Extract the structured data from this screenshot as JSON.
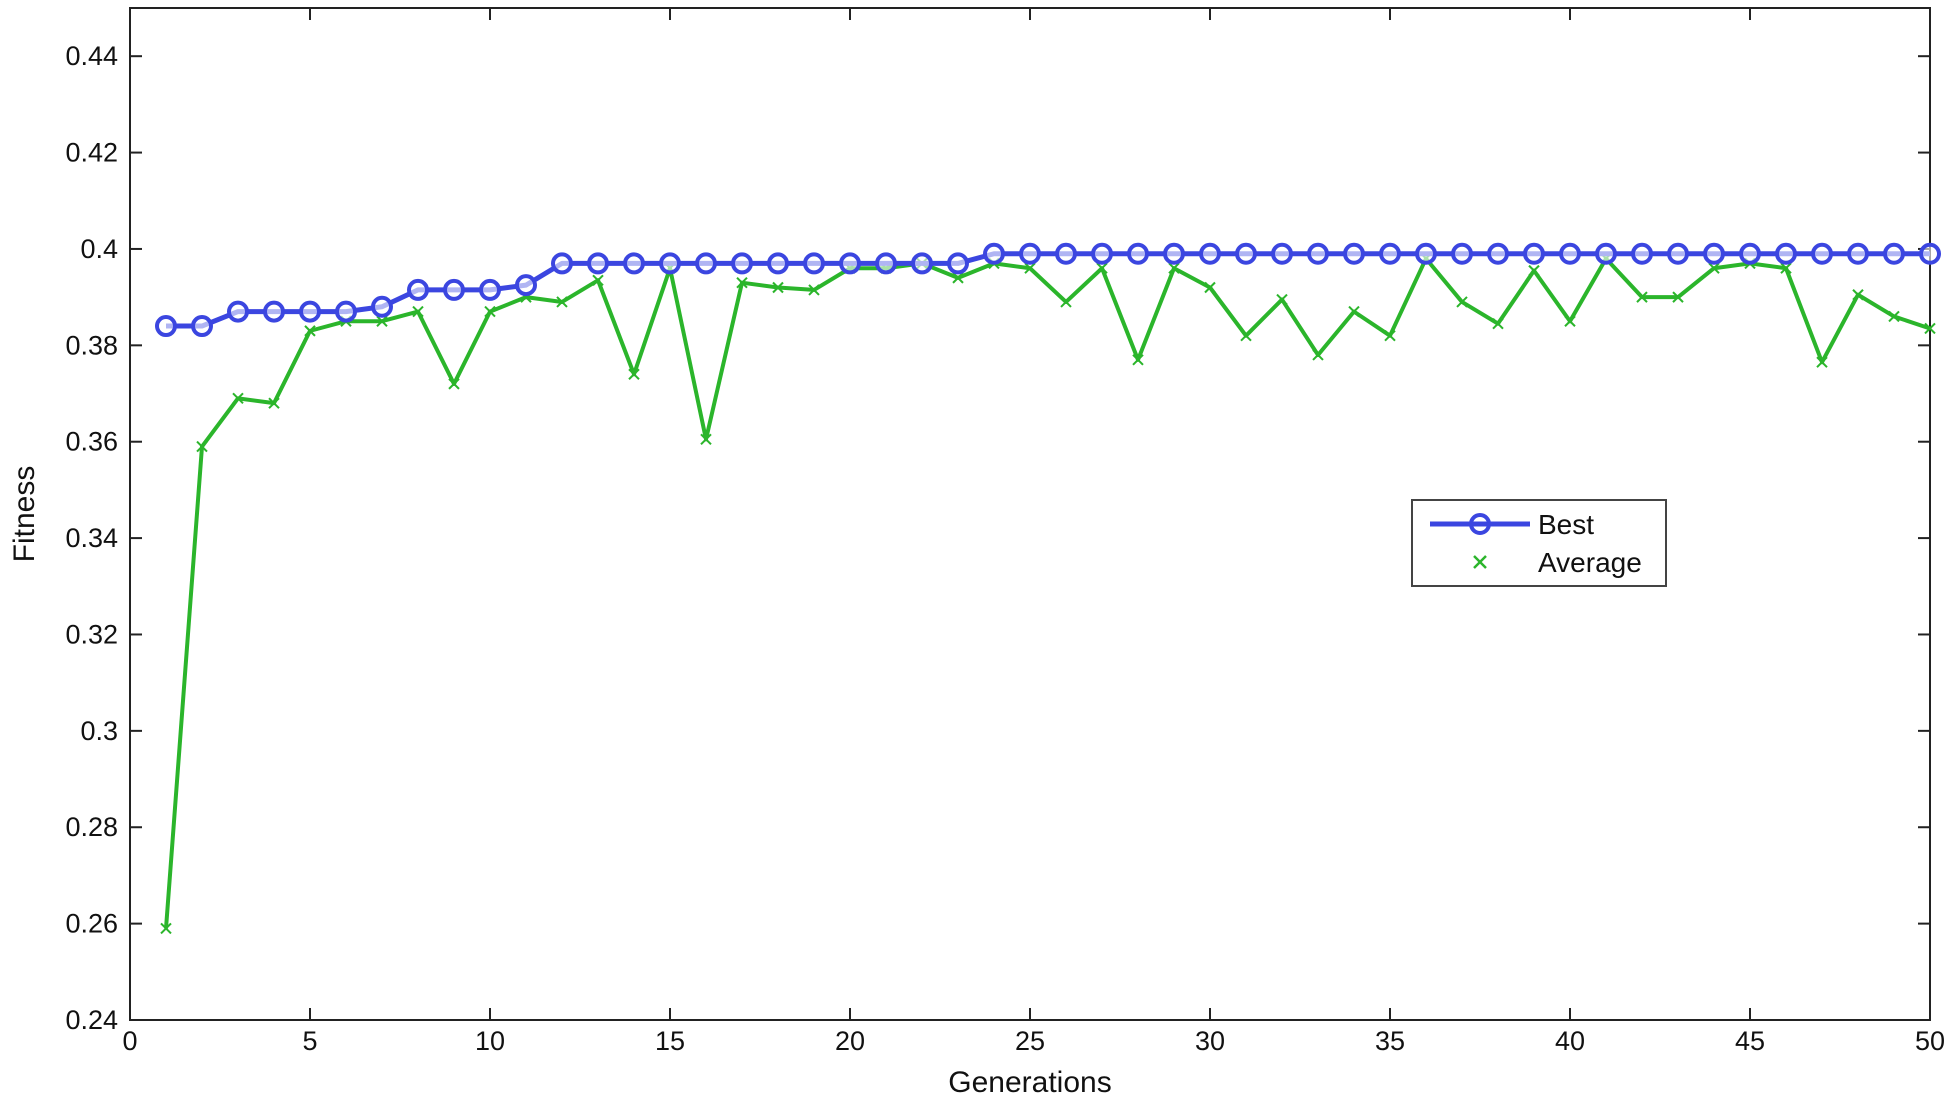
{
  "chart_data": {
    "type": "line",
    "title": "",
    "xlabel": "Generations",
    "ylabel": "Fitness",
    "xlim": [
      0,
      50
    ],
    "ylim": [
      0.24,
      0.45
    ],
    "x_ticks": [
      "0",
      "5",
      "10",
      "15",
      "20",
      "25",
      "30",
      "35",
      "40",
      "45",
      "50"
    ],
    "y_ticks": [
      "0.24",
      "0.26",
      "0.28",
      "0.3",
      "0.32",
      "0.34",
      "0.36",
      "0.38",
      "0.4",
      "0.42",
      "0.44"
    ],
    "grid": false,
    "legend_position": "right",
    "x": [
      1,
      2,
      3,
      4,
      5,
      6,
      7,
      8,
      9,
      10,
      11,
      12,
      13,
      14,
      15,
      16,
      17,
      18,
      19,
      20,
      21,
      22,
      23,
      24,
      25,
      26,
      27,
      28,
      29,
      30,
      31,
      32,
      33,
      34,
      35,
      36,
      37,
      38,
      39,
      40,
      41,
      42,
      43,
      44,
      45,
      46,
      47,
      48,
      49,
      50
    ],
    "series": [
      {
        "name": "Best",
        "color": "#3b46e0",
        "marker": "circle",
        "values": [
          0.384,
          0.384,
          0.387,
          0.387,
          0.387,
          0.387,
          0.388,
          0.3915,
          0.3915,
          0.3915,
          0.3925,
          0.397,
          0.397,
          0.397,
          0.397,
          0.397,
          0.397,
          0.397,
          0.397,
          0.397,
          0.397,
          0.397,
          0.397,
          0.399,
          0.399,
          0.399,
          0.399,
          0.399,
          0.399,
          0.399,
          0.399,
          0.399,
          0.399,
          0.399,
          0.399,
          0.399,
          0.399,
          0.399,
          0.399,
          0.399,
          0.399,
          0.399,
          0.399,
          0.399,
          0.399,
          0.399,
          0.399,
          0.399,
          0.399,
          0.399
        ]
      },
      {
        "name": "Average",
        "color": "#2bb52b",
        "marker": "x",
        "values": [
          0.259,
          0.359,
          0.369,
          0.368,
          0.383,
          0.385,
          0.385,
          0.387,
          0.372,
          0.387,
          0.39,
          0.389,
          0.3935,
          0.374,
          0.396,
          0.3605,
          0.393,
          0.392,
          0.3915,
          0.396,
          0.396,
          0.397,
          0.394,
          0.397,
          0.396,
          0.389,
          0.396,
          0.377,
          0.396,
          0.392,
          0.382,
          0.3895,
          0.378,
          0.387,
          0.382,
          0.398,
          0.389,
          0.3845,
          0.3955,
          0.385,
          0.398,
          0.39,
          0.39,
          0.396,
          0.397,
          0.396,
          0.3765,
          0.3905,
          0.386,
          0.3835
        ]
      }
    ]
  }
}
